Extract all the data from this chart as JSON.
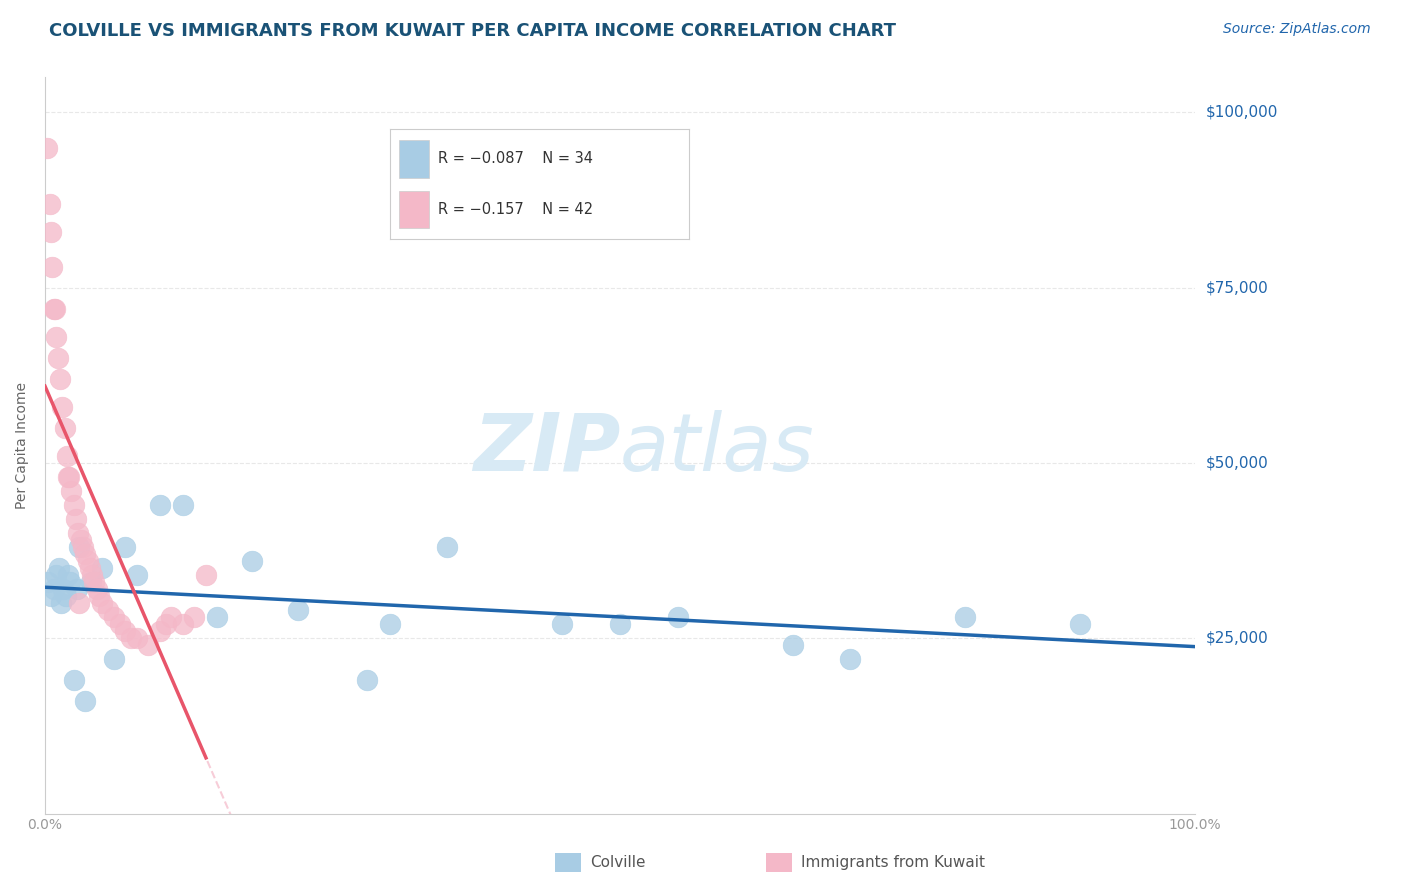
{
  "title": "COLVILLE VS IMMIGRANTS FROM KUWAIT PER CAPITA INCOME CORRELATION CHART",
  "source": "Source: ZipAtlas.com",
  "ylabel": "Per Capita Income",
  "xlim": [
    0.0,
    100.0
  ],
  "ylim": [
    0,
    105000
  ],
  "yticks": [
    0,
    25000,
    50000,
    75000,
    100000
  ],
  "ytick_labels": [
    "",
    "$25,000",
    "$50,000",
    "$75,000",
    "$100,000"
  ],
  "blue_color": "#a8cce4",
  "pink_color": "#f4b8c8",
  "blue_line_color": "#2166ac",
  "pink_line_color": "#e8556a",
  "pink_dash_color": "#f4b8c8",
  "title_color": "#1a5276",
  "source_color": "#2166ac",
  "axis_color": "#cccccc",
  "grid_color": "#e8e8e8",
  "watermark_zip_color": "#d8eaf5",
  "watermark_atlas_color": "#d8eaf5",
  "blue_scatter_x": [
    0.3,
    0.5,
    0.8,
    1.0,
    1.2,
    1.4,
    1.6,
    1.8,
    2.0,
    2.2,
    2.5,
    2.8,
    3.0,
    3.5,
    4.0,
    5.0,
    6.0,
    7.0,
    8.0,
    10.0,
    12.0,
    15.0,
    18.0,
    22.0,
    28.0,
    30.0,
    35.0,
    45.0,
    50.0,
    55.0,
    65.0,
    70.0,
    80.0,
    90.0
  ],
  "blue_scatter_y": [
    33000,
    31000,
    32000,
    34000,
    35000,
    30000,
    32000,
    31000,
    34000,
    33000,
    19000,
    32000,
    38000,
    16000,
    33000,
    35000,
    22000,
    38000,
    34000,
    44000,
    44000,
    28000,
    36000,
    29000,
    19000,
    27000,
    38000,
    27000,
    27000,
    28000,
    24000,
    22000,
    28000,
    27000
  ],
  "pink_scatter_x": [
    0.2,
    0.4,
    0.5,
    0.6,
    0.8,
    1.0,
    1.1,
    1.3,
    1.5,
    1.7,
    1.9,
    2.1,
    2.3,
    2.5,
    2.7,
    2.9,
    3.1,
    3.3,
    3.5,
    3.7,
    3.9,
    4.1,
    4.3,
    4.5,
    4.7,
    5.0,
    5.5,
    6.0,
    6.5,
    7.0,
    7.5,
    8.0,
    9.0,
    10.0,
    10.5,
    11.0,
    12.0,
    13.0,
    14.0,
    2.0,
    3.0,
    0.9
  ],
  "pink_scatter_y": [
    95000,
    87000,
    83000,
    78000,
    72000,
    68000,
    65000,
    62000,
    58000,
    55000,
    51000,
    48000,
    46000,
    44000,
    42000,
    40000,
    39000,
    38000,
    37000,
    36000,
    35000,
    34000,
    33000,
    32000,
    31000,
    30000,
    29000,
    28000,
    27000,
    26000,
    25000,
    25000,
    24000,
    26000,
    27000,
    28000,
    27000,
    28000,
    34000,
    48000,
    30000,
    72000
  ]
}
